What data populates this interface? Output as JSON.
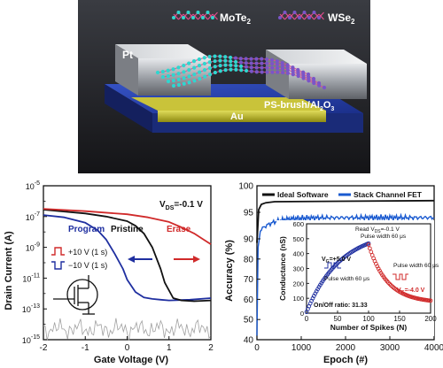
{
  "device_figure": {
    "labels": {
      "mote2": "MoTe",
      "mote2_sub": "2",
      "wse2": "WSe",
      "wse2_sub": "2",
      "pt": "Pt",
      "dielectric": "PS-brush/Al",
      "dielectric_sub1": "2",
      "dielectric_mid": "O",
      "dielectric_sub2": "3",
      "au": "Au"
    },
    "colors": {
      "background": "#222226",
      "substrate_blue": "#1f3aa8",
      "au_yellow": "#b8b320",
      "pt_silver": "#b9bcc2",
      "mote2_atoms": "#2fd6cf",
      "wse2_atoms": "#7a55c8",
      "bond_pink": "#e04c8c"
    }
  },
  "chart_data": [
    {
      "type": "line",
      "xlabel": "Gate Voltage (V)",
      "ylabel": "Drain Current (A)",
      "xlim": [
        -2,
        2
      ],
      "ylim_log10": [
        -15,
        -5
      ],
      "xticks": [
        "-2",
        "-1",
        "0",
        "1",
        "2"
      ],
      "yticks": [
        {
          "base": "10",
          "exp": "-15"
        },
        {
          "base": "10",
          "exp": "-13"
        },
        {
          "base": "10",
          "exp": "-11"
        },
        {
          "base": "10",
          "exp": "-9"
        },
        {
          "base": "10",
          "exp": "-7"
        },
        {
          "base": "10",
          "exp": "-5"
        }
      ],
      "vds_label": {
        "main": "V",
        "sub": "DS",
        "rest": "=-0.1 V"
      },
      "series": [
        {
          "name": "Program",
          "color": "#1f2fa0",
          "x": [
            -2,
            -1.5,
            -1,
            -0.7,
            -0.5,
            -0.3,
            -0.1,
            0,
            0.2,
            0.4,
            0.6,
            0.8,
            1,
            1.5,
            2
          ],
          "log10y": [
            -6.9,
            -7.05,
            -7.4,
            -7.9,
            -8.5,
            -9.4,
            -10.4,
            -11.1,
            -11.9,
            -12.25,
            -12.35,
            -12.4,
            -12.45,
            -12.4,
            -12.3
          ]
        },
        {
          "name": "Pristine",
          "color": "#111111",
          "x": [
            -2,
            -1,
            -0.5,
            0,
            0.2,
            0.4,
            0.6,
            0.8,
            0.9,
            1.1,
            1.3,
            1.6,
            2
          ],
          "log10y": [
            -6.55,
            -6.8,
            -7.0,
            -7.3,
            -7.6,
            -8.1,
            -9.0,
            -10.4,
            -11.3,
            -12.3,
            -12.45,
            -12.5,
            -12.45
          ]
        },
        {
          "name": "Erase",
          "color": "#d02a2a",
          "x": [
            -2,
            -1,
            0,
            0.5,
            1,
            1.3,
            1.6,
            1.8,
            2
          ],
          "log10y": [
            -6.5,
            -6.65,
            -6.85,
            -7.05,
            -7.35,
            -7.7,
            -8.1,
            -8.45,
            -8.8
          ]
        }
      ],
      "noise_floor_color": "#a0a0a0",
      "annotations": {
        "program": "Program",
        "pristine": "Pristine",
        "erase": "Erase",
        "pulse_pos": "+10 V (1 s)",
        "pulse_neg": "−10 V (1 s)"
      }
    },
    {
      "type": "line",
      "xlabel": "Epoch (#)",
      "ylabel": "Accuracy (%)",
      "xlim": [
        0,
        4000
      ],
      "ylim": [
        40,
        100
      ],
      "xticks": [
        "0",
        "1000",
        "2000",
        "3000",
        "4000"
      ],
      "yticks": [
        "40",
        "50",
        "60",
        "70",
        "80",
        "90",
        "95",
        "100"
      ],
      "series": [
        {
          "name": "Ideal Software",
          "color": "#111111",
          "x": [
            0,
            40,
            100,
            200,
            400,
            4000
          ],
          "y": [
            88,
            95.5,
            96.5,
            96.8,
            97.0,
            97.2
          ]
        },
        {
          "name": "Stack Channel FET",
          "color": "#1a5ad0",
          "x": [
            0,
            20,
            60,
            150,
            400,
            1000,
            2000,
            4000
          ],
          "y": [
            42,
            85,
            91,
            92.5,
            93.3,
            93.7,
            93.9,
            94.0
          ]
        }
      ],
      "inset": {
        "type": "scatter",
        "xlabel": "Number of Spikes (N)",
        "ylabel": "Conductance (nS)",
        "xlim": [
          0,
          200
        ],
        "ylim": [
          0,
          600
        ],
        "xticks": [
          "0",
          "50",
          "100",
          "150",
          "200"
        ],
        "yticks": [
          "0",
          "100",
          "200",
          "300",
          "400",
          "500",
          "600"
        ],
        "potentiation_color": "#1f2fa0",
        "depression_color": "#d02a2a",
        "potentiation_endpoint": 460,
        "depression_endpoint": 70,
        "text": {
          "read": "Read V",
          "read_sub": "DS",
          "read_rest": "=-0.1 V",
          "pulse_width": "Pulse width 60 μs",
          "vg_plus_main": "V",
          "vg_plus_sub": "G",
          "vg_plus_rest": "=+5.0 V",
          "vg_minus_main": "V",
          "vg_minus_sub": "G",
          "vg_minus_rest": "=-4.0 V",
          "ratio": "On/Off ratio: 31.33"
        }
      }
    }
  ]
}
